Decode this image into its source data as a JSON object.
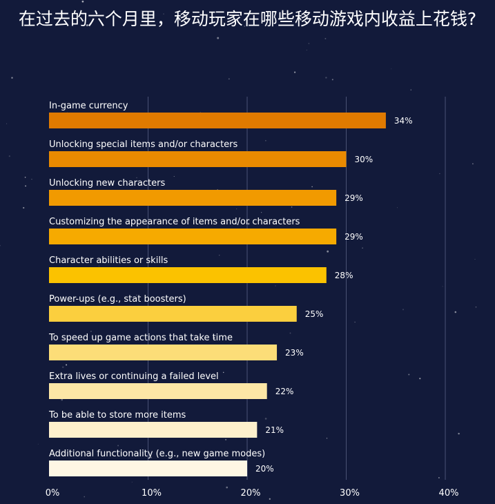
{
  "chart_data": {
    "type": "bar",
    "orientation": "horizontal",
    "title": "在过去的六个月里，移动玩家在哪些移动游戏内收益上花钱?",
    "categories": [
      "In-game currency",
      "Unlocking special items and/or characters",
      "Unlocking new characters",
      "Customizing the appearance of items and/or characters",
      "Character abilities or skills",
      "Power-ups (e.g., stat boosters)",
      "To speed up game actions that take time",
      "Extra lives or continuing a failed level",
      "To be able to store more items",
      "Additional functionality (e.g., new game modes)"
    ],
    "values": [
      34,
      30,
      29,
      29,
      28,
      25,
      23,
      22,
      21,
      20
    ],
    "value_labels": [
      "34%",
      "30%",
      "29%",
      "29%",
      "28%",
      "25%",
      "23%",
      "22%",
      "21%",
      "20%"
    ],
    "xlim": [
      0,
      40
    ],
    "xticks": [
      0,
      10,
      20,
      30,
      40
    ],
    "xtick_labels": [
      "0%",
      "10%",
      "20%",
      "30%",
      "40%"
    ],
    "grid": "vertical",
    "colors": [
      "#e07a00",
      "#e98a00",
      "#f19a00",
      "#f6aa00",
      "#fbc200",
      "#fbcf3e",
      "#fcdd78",
      "#fde7a6",
      "#fdf0cc",
      "#fef7e4"
    ]
  }
}
